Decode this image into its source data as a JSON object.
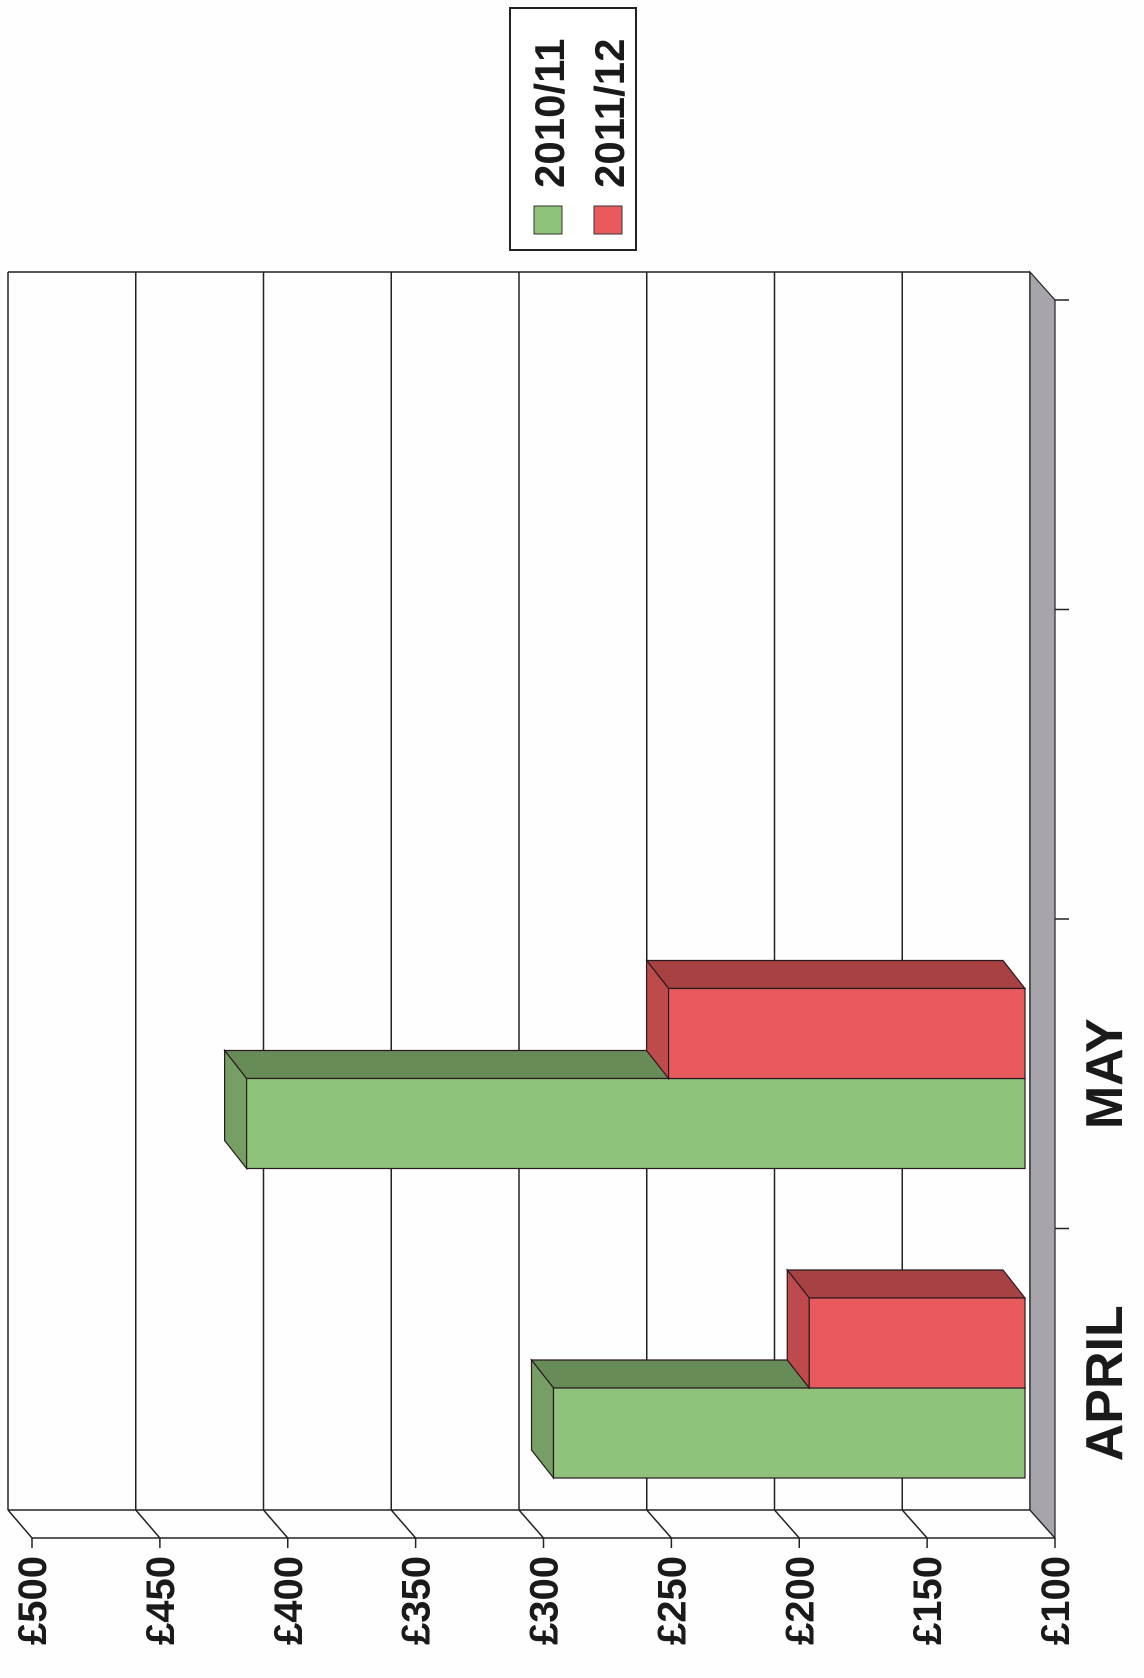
{
  "chart_data": {
    "type": "bar",
    "orientation": "3d-bar-rotated",
    "categories": [
      "APRIL",
      "MAY",
      "",
      ""
    ],
    "series": [
      {
        "name": "2010/11",
        "values": [
          300,
          420,
          null,
          null
        ]
      },
      {
        "name": "2011/12",
        "values": [
          200,
          255,
          null,
          null
        ]
      }
    ],
    "ylim": [
      100,
      500
    ],
    "yticks": [
      100,
      150,
      200,
      250,
      300,
      350,
      400,
      450,
      500
    ],
    "ytick_labels": [
      "£100",
      "£150",
      "£200",
      "£250",
      "£300",
      "£350",
      "£400",
      "£450",
      "£500"
    ],
    "title": "",
    "xlabel": "",
    "ylabel": "",
    "grid": true,
    "legend_position": "top-right",
    "colors": {
      "2010/11": "#8fc27a",
      "2011/12": "#e85a5c",
      "floor": "#a7a4ab",
      "grid": "#222222"
    }
  }
}
